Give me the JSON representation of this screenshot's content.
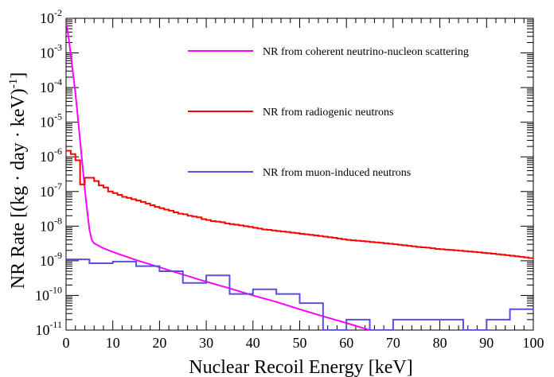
{
  "chart_data": {
    "type": "line",
    "title": "",
    "xlabel": "Nuclear Recoil Energy [keV]",
    "ylabel": "NR Rate [(kg · day · keV)",
    "ylabel_superscript": "-1",
    "ylabel_suffix": "]",
    "xlim": [
      0,
      100
    ],
    "ylim": [
      1e-11,
      0.01
    ],
    "yscale": "log",
    "grid": false,
    "legend_position": "top-right",
    "x_ticks": [
      "0",
      "10",
      "20",
      "30",
      "40",
      "50",
      "60",
      "70",
      "80",
      "90",
      "100"
    ],
    "y_ticks": [
      {
        "base": "10",
        "exp": "-11"
      },
      {
        "base": "10",
        "exp": "-10"
      },
      {
        "base": "10",
        "exp": "-9"
      },
      {
        "base": "10",
        "exp": "-8"
      },
      {
        "base": "10",
        "exp": "-7"
      },
      {
        "base": "10",
        "exp": "-6"
      },
      {
        "base": "10",
        "exp": "-5"
      },
      {
        "base": "10",
        "exp": "-4"
      },
      {
        "base": "10",
        "exp": "-3"
      },
      {
        "base": "10",
        "exp": "-2"
      }
    ],
    "series": [
      {
        "name": "NR from coherent neutrino-nucleon scattering",
        "color": "#ff00ff",
        "style": "line",
        "x": [
          0,
          0.5,
          1,
          1.5,
          2,
          2.5,
          3,
          3.5,
          4,
          4.5,
          5,
          5.5,
          6,
          8,
          10,
          15,
          20,
          25,
          30,
          35,
          40,
          45,
          50,
          55,
          60,
          65
        ],
        "y": [
          0.008,
          0.003,
          0.0009,
          0.00025,
          7e-05,
          1.5e-05,
          3e-06,
          6e-07,
          1.2e-07,
          3e-08,
          8e-09,
          4e-09,
          3.2e-09,
          2.3e-09,
          1.8e-09,
          1.05e-09,
          6.5e-10,
          4e-10,
          2.5e-10,
          1.6e-10,
          1e-10,
          6.5e-11,
          4e-11,
          2.5e-11,
          1.6e-11,
          1e-11
        ]
      },
      {
        "name": "NR from radiogenic neutrons",
        "color": "#ff0000",
        "style": "step",
        "bin_width": 1,
        "x": [
          0,
          1,
          2,
          3,
          4,
          5,
          6,
          7,
          8,
          9,
          10,
          11,
          12,
          13,
          14,
          15,
          16,
          17,
          18,
          19,
          20,
          21,
          22,
          23,
          24,
          25,
          26,
          27,
          28,
          29,
          30,
          31,
          32,
          33,
          34,
          35,
          36,
          37,
          38,
          39,
          40,
          41,
          42,
          43,
          44,
          45,
          46,
          47,
          48,
          49,
          50,
          51,
          52,
          53,
          54,
          55,
          56,
          57,
          58,
          59,
          60,
          61,
          62,
          63,
          64,
          65,
          66,
          67,
          68,
          69,
          70,
          71,
          72,
          73,
          74,
          75,
          76,
          77,
          78,
          79,
          80,
          81,
          82,
          83,
          84,
          85,
          86,
          87,
          88,
          89,
          90,
          91,
          92,
          93,
          94,
          95,
          96,
          97,
          98,
          99
        ],
        "y": [
          1.5e-06,
          1.2e-06,
          8e-07,
          1.6e-07,
          2.5e-07,
          2.5e-07,
          2e-07,
          1.5e-07,
          1.3e-07,
          1e-07,
          9e-08,
          8e-08,
          7e-08,
          6.5e-08,
          6e-08,
          5.5e-08,
          5e-08,
          4.5e-08,
          4e-08,
          3.6e-08,
          3.3e-08,
          3e-08,
          2.8e-08,
          2.5e-08,
          2.3e-08,
          2.2e-08,
          2e-08,
          1.9e-08,
          1.8e-08,
          1.6e-08,
          1.5e-08,
          1.4e-08,
          1.35e-08,
          1.3e-08,
          1.2e-08,
          1.15e-08,
          1.1e-08,
          1.05e-08,
          1e-08,
          9.5e-09,
          9e-09,
          8.5e-09,
          8e-09,
          7.8e-09,
          7.5e-09,
          7.2e-09,
          7e-09,
          6.8e-09,
          6.5e-09,
          6.3e-09,
          6e-09,
          5.8e-09,
          5.6e-09,
          5.4e-09,
          5.2e-09,
          5e-09,
          4.8e-09,
          4.6e-09,
          4.4e-09,
          4.2e-09,
          4e-09,
          3.9e-09,
          3.8e-09,
          3.7e-09,
          3.6e-09,
          3.5e-09,
          3.4e-09,
          3.3e-09,
          3.2e-09,
          3.1e-09,
          3e-09,
          2.9e-09,
          2.8e-09,
          2.7e-09,
          2.6e-09,
          2.5e-09,
          2.45e-09,
          2.4e-09,
          2.3e-09,
          2.2e-09,
          2.15e-09,
          2.1e-09,
          2.05e-09,
          2e-09,
          1.95e-09,
          1.9e-09,
          1.85e-09,
          1.8e-09,
          1.75e-09,
          1.7e-09,
          1.65e-09,
          1.6e-09,
          1.55e-09,
          1.5e-09,
          1.45e-09,
          1.4e-09,
          1.35e-09,
          1.3e-09,
          1.25e-09,
          1.2e-09
        ]
      },
      {
        "name": "NR from muon-induced neutrons",
        "color": "#5a4fdc",
        "style": "step",
        "bin_width": 5,
        "x": [
          0,
          5,
          10,
          15,
          20,
          25,
          30,
          35,
          40,
          45,
          50,
          55,
          60,
          65,
          70,
          75,
          80,
          85,
          90,
          95
        ],
        "y": [
          1.1e-09,
          8.5e-10,
          9.5e-10,
          7e-10,
          5e-10,
          2.3e-10,
          3.8e-10,
          1.1e-10,
          1.5e-10,
          1.1e-10,
          6e-11,
          1e-11,
          2e-11,
          1e-11,
          2e-11,
          2e-11,
          2e-11,
          1e-11,
          2e-11,
          4e-11
        ]
      }
    ]
  }
}
